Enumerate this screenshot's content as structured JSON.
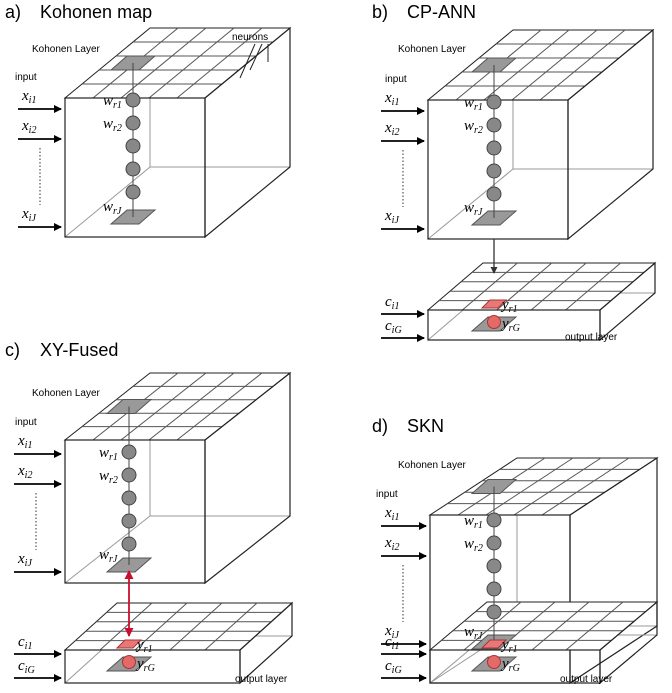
{
  "panels": [
    {
      "label": "a)",
      "title": "Kohonen map",
      "layer_label": "Kohonen Layer",
      "neurons_label": "neurons",
      "input_label": "input",
      "inputs": [
        {
          "base": "x",
          "sub": "i1"
        },
        {
          "base": "x",
          "sub": "i2"
        },
        {
          "base": "x",
          "sub": "iJ"
        }
      ],
      "weights": [
        {
          "base": "w",
          "sub": "r1"
        },
        {
          "base": "w",
          "sub": "r2"
        },
        {
          "base": "w",
          "sub": "rJ"
        }
      ]
    },
    {
      "label": "b)",
      "title": "CP-ANN",
      "layer_label": "Kohonen Layer",
      "input_label": "input",
      "inputs": [
        {
          "base": "x",
          "sub": "i1"
        },
        {
          "base": "x",
          "sub": "i2"
        },
        {
          "base": "x",
          "sub": "iJ"
        }
      ],
      "weights": [
        {
          "base": "w",
          "sub": "r1"
        },
        {
          "base": "w",
          "sub": "r2"
        },
        {
          "base": "w",
          "sub": "rJ"
        }
      ],
      "outputs": [
        {
          "base": "c",
          "sub": "i1"
        },
        {
          "base": "c",
          "sub": "iG"
        }
      ],
      "output_weights": [
        {
          "base": "y",
          "sub": "r1"
        },
        {
          "base": "y",
          "sub": "rG"
        }
      ],
      "output_label": "output layer"
    },
    {
      "label": "c)",
      "title": "XY-Fused",
      "layer_label": "Kohonen Layer",
      "input_label": "input",
      "inputs": [
        {
          "base": "x",
          "sub": "i1"
        },
        {
          "base": "x",
          "sub": "i2"
        },
        {
          "base": "x",
          "sub": "iJ"
        }
      ],
      "weights": [
        {
          "base": "w",
          "sub": "r1"
        },
        {
          "base": "w",
          "sub": "r2"
        },
        {
          "base": "w",
          "sub": "rJ"
        }
      ],
      "outputs": [
        {
          "base": "c",
          "sub": "i1"
        },
        {
          "base": "c",
          "sub": "iG"
        }
      ],
      "output_weights": [
        {
          "base": "y",
          "sub": "r1"
        },
        {
          "base": "y",
          "sub": "rG"
        }
      ],
      "output_label": "output layer"
    },
    {
      "label": "d)",
      "title": "SKN",
      "layer_label": "Kohonen Layer",
      "input_label": "input",
      "inputs": [
        {
          "base": "x",
          "sub": "i1"
        },
        {
          "base": "x",
          "sub": "i2"
        },
        {
          "base": "x",
          "sub": "iJ"
        }
      ],
      "weights": [
        {
          "base": "w",
          "sub": "r1"
        },
        {
          "base": "w",
          "sub": "r2"
        },
        {
          "base": "w",
          "sub": "rJ"
        }
      ],
      "outputs": [
        {
          "base": "c",
          "sub": "i1"
        },
        {
          "base": "c",
          "sub": "iG"
        }
      ],
      "output_weights": [
        {
          "base": "y",
          "sub": "r1"
        },
        {
          "base": "y",
          "sub": "rG"
        }
      ],
      "output_label": "output layer"
    }
  ]
}
